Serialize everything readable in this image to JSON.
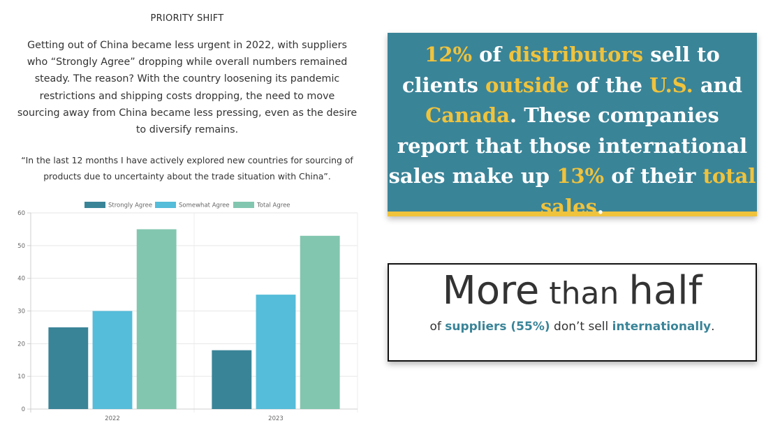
{
  "section_title": "PRIORITY SHIFT",
  "intro": "Getting out of China became less urgent in 2022, with suppliers who “Strongly Agree” dropping while overall numbers remained steady. The reason? With the country loosening its pandemic restrictions and shipping costs dropping, the need to move sourcing away from China became less pressing, even as the desire to diversify remains.",
  "quote": "“In the last 12 months I have actively explored new countries for sourcing of products due to uncertainty about the trade situation with China”.",
  "chart_data": {
    "type": "bar",
    "categories": [
      "2022",
      "2023"
    ],
    "series": [
      {
        "name": "Strongly Agree",
        "values": [
          25,
          18
        ],
        "color": "#3a8498"
      },
      {
        "name": "Somewhat Agree",
        "values": [
          30,
          35
        ],
        "color": "#55bcd9"
      },
      {
        "name": "Total Agree",
        "values": [
          55,
          53
        ],
        "color": "#82c6b0"
      }
    ],
    "ylim": [
      0,
      60
    ],
    "yticks": [
      0,
      10,
      20,
      30,
      40,
      50,
      60
    ],
    "legend": "top",
    "grid": true
  },
  "stat_box": {
    "pct": "12%",
    "t1": " of ",
    "distributors": "distributors",
    "t2": " sell to clients ",
    "outside": "outside",
    "t3": " of the ",
    "us": "U.S.",
    "t4": " and ",
    "canada": "Canada",
    "t5": ". These companies report that those international sales make up ",
    "pct2": "13%",
    "t6": " of their ",
    "total_sales": "total sales",
    "t7": "."
  },
  "half_box": {
    "more": "More",
    "than": " than ",
    "half": "half",
    "of": "of ",
    "suppliers": "suppliers (55%)",
    "dont": " don’t sell ",
    "internationally": "internationally",
    "period": "."
  },
  "colors": {
    "teal": "#3a8498",
    "gold": "#f0c33c",
    "light_blue": "#55bcd9",
    "mint": "#82c6b0"
  }
}
